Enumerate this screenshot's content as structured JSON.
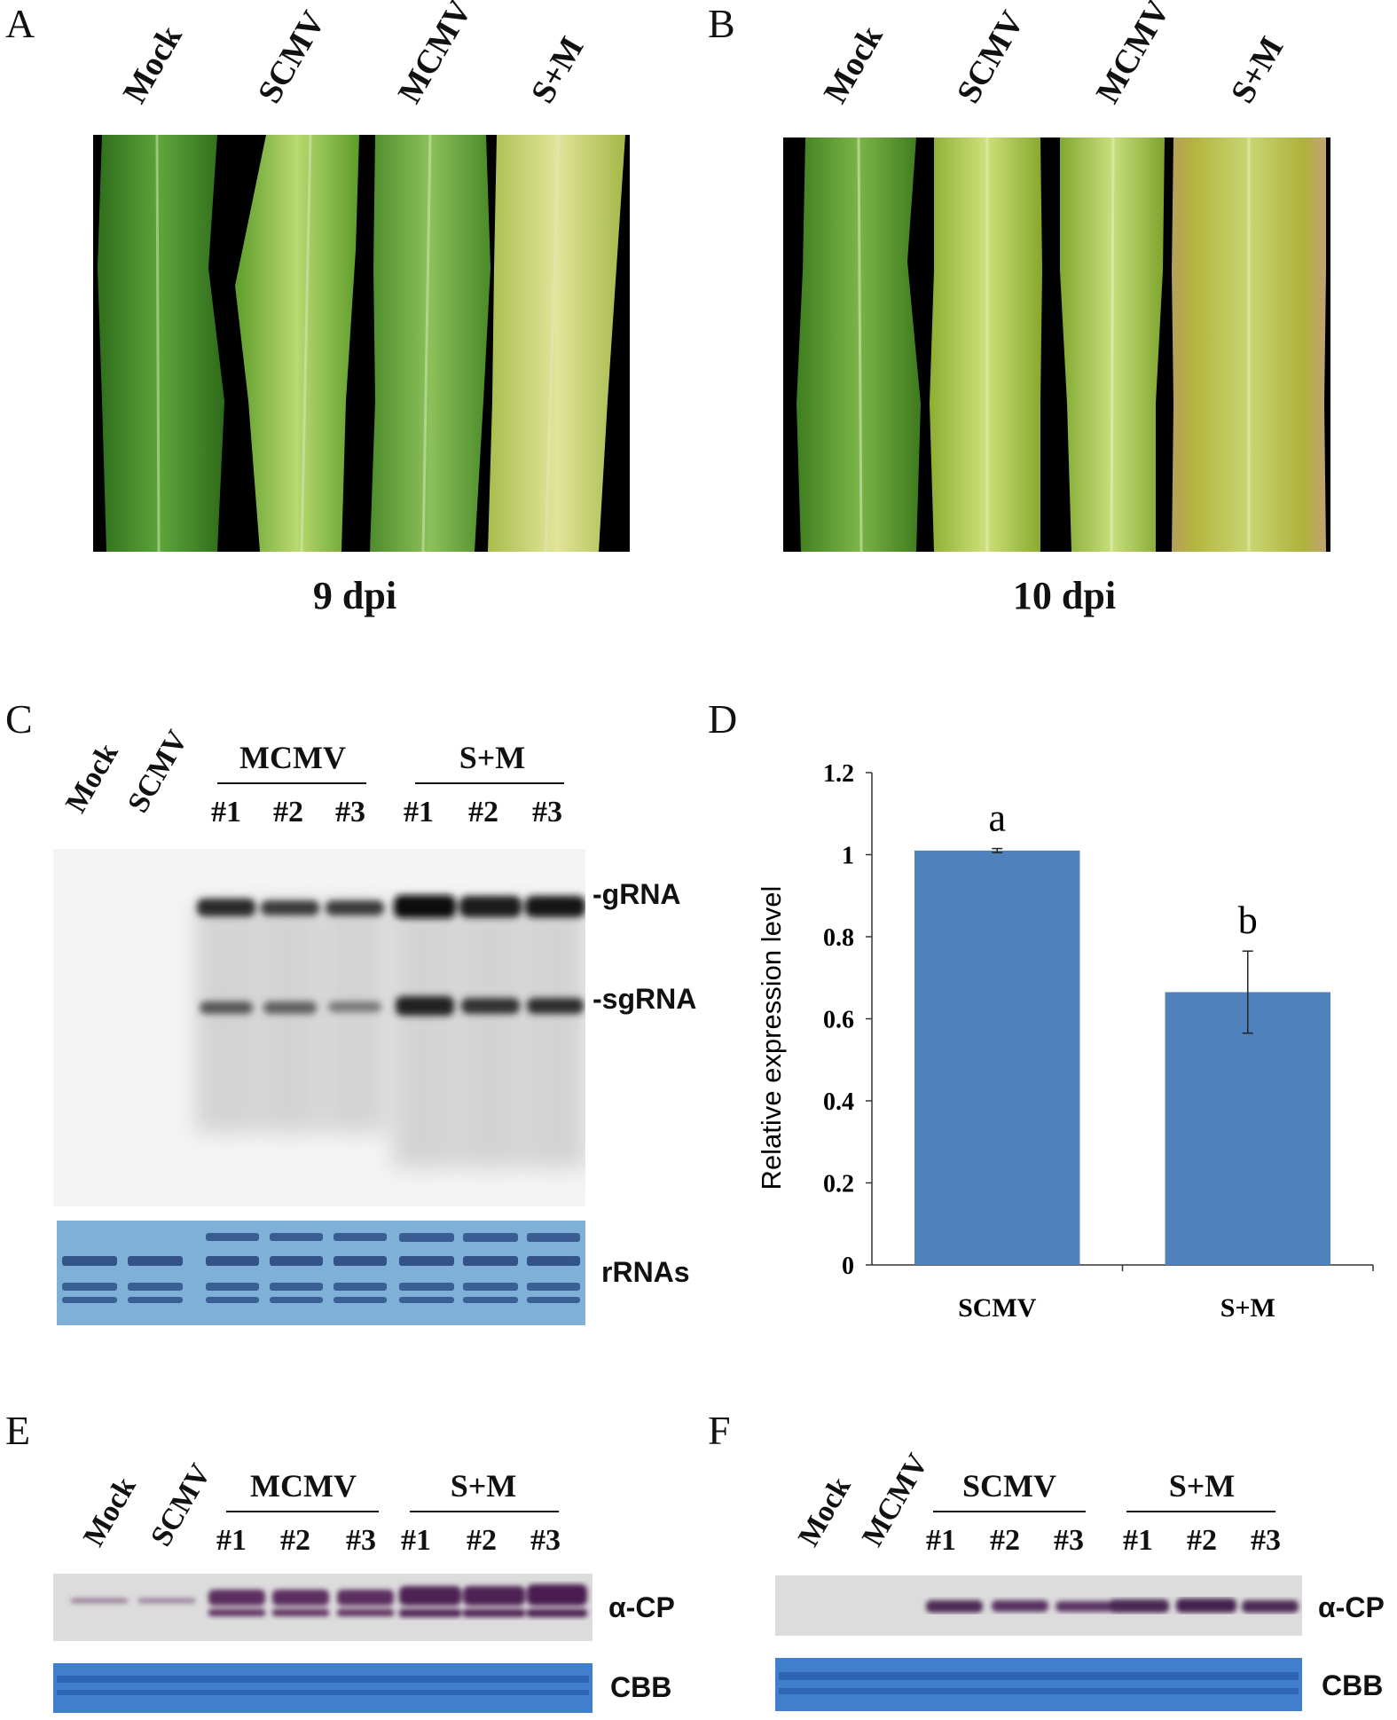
{
  "panels": {
    "A": {
      "letter": "A",
      "lanes": [
        "Mock",
        "SCMV",
        "MCMV",
        "S+M"
      ],
      "time": "9 dpi"
    },
    "B": {
      "letter": "B",
      "lanes": [
        "Mock",
        "SCMV",
        "MCMV",
        "S+M"
      ],
      "time": "10 dpi"
    },
    "C": {
      "letter": "C",
      "single_lanes": [
        "Mock",
        "SCMV"
      ],
      "groups": [
        {
          "name": "MCMV",
          "reps": [
            "#1",
            "#2",
            "#3"
          ]
        },
        {
          "name": "S+M",
          "reps": [
            "#1",
            "#2",
            "#3"
          ]
        }
      ],
      "bands": [
        "-gRNA",
        "-sgRNA"
      ],
      "loading": "rRNAs"
    },
    "D": {
      "letter": "D"
    },
    "E": {
      "letter": "E",
      "single_lanes": [
        "Mock",
        "SCMV"
      ],
      "groups": [
        {
          "name": "MCMV",
          "reps": [
            "#1",
            "#2",
            "#3"
          ]
        },
        {
          "name": "S+M",
          "reps": [
            "#1",
            "#2",
            "#3"
          ]
        }
      ],
      "band": "α-CP",
      "loading": "CBB"
    },
    "F": {
      "letter": "F",
      "single_lanes": [
        "Mock",
        "MCMV"
      ],
      "groups": [
        {
          "name": "SCMV",
          "reps": [
            "#1",
            "#2",
            "#3"
          ]
        },
        {
          "name": "S+M",
          "reps": [
            "#1",
            "#2",
            "#3"
          ]
        }
      ],
      "band": "α-CP",
      "loading": "CBB"
    }
  },
  "chart_data": {
    "type": "bar",
    "categories": [
      "SCMV",
      "S+M"
    ],
    "values": [
      1.01,
      0.665
    ],
    "errors": [
      0.005,
      0.1
    ],
    "significance": [
      "a",
      "b"
    ],
    "ylabel": "Relative expression level",
    "ylim": [
      0,
      1.2
    ],
    "yticks": [
      "0",
      "0.2",
      "0.4",
      "0.6",
      "0.8",
      "1",
      "1.2"
    ],
    "bar_color": "#4f81bd",
    "grid": false
  }
}
